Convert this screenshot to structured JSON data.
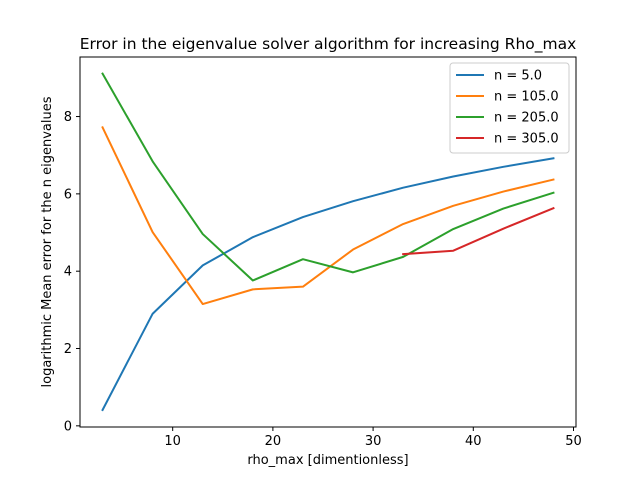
{
  "chart_data": {
    "type": "line",
    "title": "Error in the eigenvalue solver algorithm for increasing Rho_max",
    "xlabel": "rho_max [dimentionless]",
    "ylabel": "logarithmic Mean error for the n eigenvalues",
    "xlim": [
      0.75,
      50.25
    ],
    "ylim": [
      -0.03,
      9.54
    ],
    "xticks": [
      10,
      20,
      30,
      40,
      50
    ],
    "yticks": [
      0,
      2,
      4,
      6,
      8
    ],
    "grid": false,
    "legend_position": "top-right",
    "series": [
      {
        "name": "n = 5.0",
        "color": "#1f77b4",
        "x": [
          3,
          8,
          13,
          18,
          23,
          28,
          33,
          38,
          43,
          48
        ],
        "y": [
          0.41,
          2.9,
          4.15,
          4.88,
          5.4,
          5.81,
          6.16,
          6.45,
          6.7,
          6.92
        ]
      },
      {
        "name": "n = 105.0",
        "color": "#ff7f0e",
        "x": [
          3,
          8,
          13,
          18,
          23,
          28,
          33,
          38,
          43,
          48
        ],
        "y": [
          7.72,
          5.01,
          3.15,
          3.53,
          3.6,
          4.56,
          5.22,
          5.69,
          6.06,
          6.37
        ]
      },
      {
        "name": "n = 205.0",
        "color": "#2ca02c",
        "x": [
          3,
          8,
          13,
          18,
          23,
          28,
          33,
          38,
          43,
          48
        ],
        "y": [
          9.11,
          6.84,
          4.96,
          3.76,
          4.31,
          3.97,
          4.37,
          5.09,
          5.62,
          6.03
        ]
      },
      {
        "name": "n = 305.0",
        "color": "#d62728",
        "x": [
          33,
          38,
          43,
          48
        ],
        "y": [
          4.44,
          4.53,
          5.1,
          5.63
        ]
      }
    ]
  }
}
